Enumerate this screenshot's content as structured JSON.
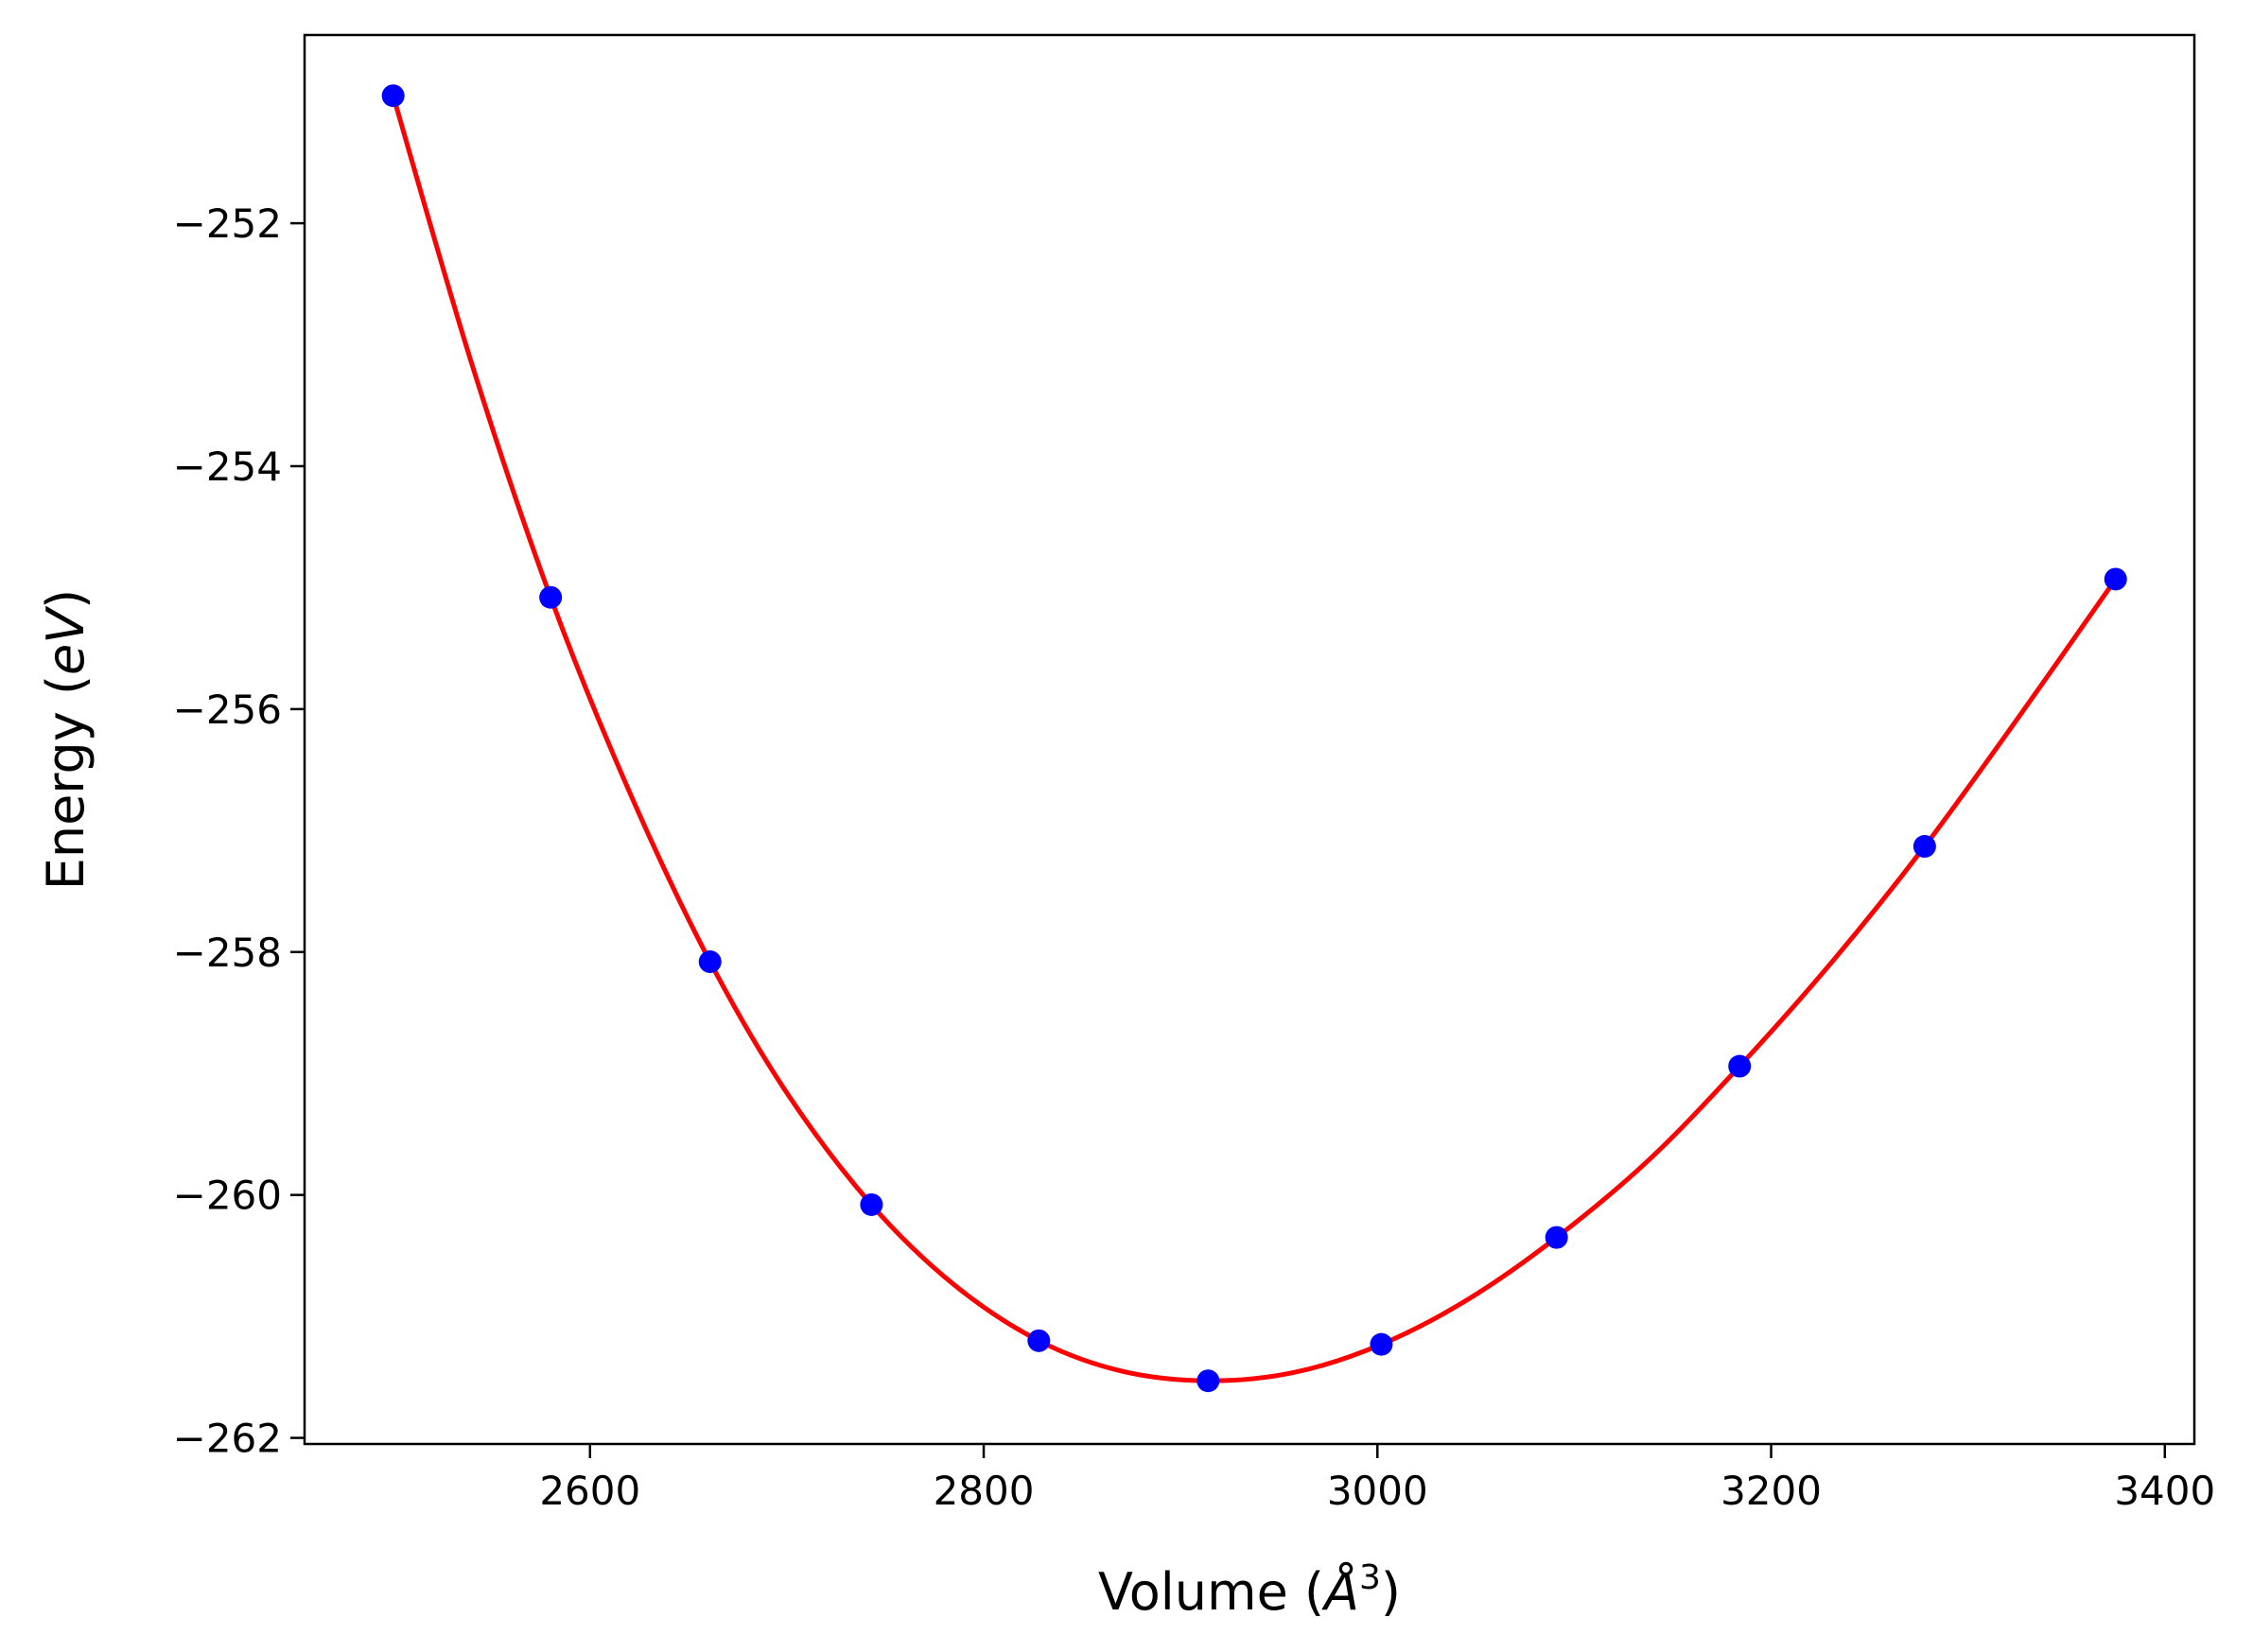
{
  "chart_data": {
    "type": "scatter",
    "title": "",
    "xlabel": {
      "prefix": "Volume (",
      "symbol": "Å",
      "sup": "3",
      "suffix": ")"
    },
    "ylabel": {
      "prefix": "Energy (",
      "symbol": "eV",
      "suffix": ")"
    },
    "xlim": [
      2455,
      3415
    ],
    "ylim": [
      -262.05,
      -250.45
    ],
    "xticks": [
      2600,
      2800,
      3000,
      3200,
      3400
    ],
    "xtick_labels": [
      "2600",
      "2800",
      "3000",
      "3200",
      "3400"
    ],
    "yticks": [
      -252,
      -254,
      -256,
      -258,
      -260,
      -262
    ],
    "ytick_labels": [
      "−252",
      "−254",
      "−256",
      "−258",
      "−260",
      "−262"
    ],
    "grid": false,
    "legend": null,
    "series": [
      {
        "kind": "points",
        "color": "#0000ff",
        "x": [
          2500,
          2580,
          2661,
          2743,
          2828,
          2914,
          3002,
          3091,
          3184,
          3278,
          3375
        ],
        "y": [
          -250.95,
          -255.08,
          -258.08,
          -260.08,
          -261.2,
          -261.53,
          -261.23,
          -260.35,
          -258.94,
          -257.13,
          -254.93
        ]
      },
      {
        "kind": "fit-curve",
        "color": "#ff0000",
        "x": [
          2500,
          2540,
          2580,
          2620,
          2661,
          2700,
          2743,
          2785,
          2828,
          2870,
          2914,
          2958,
          3002,
          3046,
          3091,
          3138,
          3184,
          3231,
          3278,
          3326,
          3375
        ],
        "y": [
          -250.95,
          -253.16,
          -255.08,
          -256.68,
          -258.08,
          -259.16,
          -260.08,
          -260.74,
          -261.2,
          -261.45,
          -261.53,
          -261.46,
          -261.23,
          -260.86,
          -260.35,
          -259.71,
          -258.94,
          -258.08,
          -257.13,
          -256.06,
          -254.93
        ]
      }
    ]
  }
}
